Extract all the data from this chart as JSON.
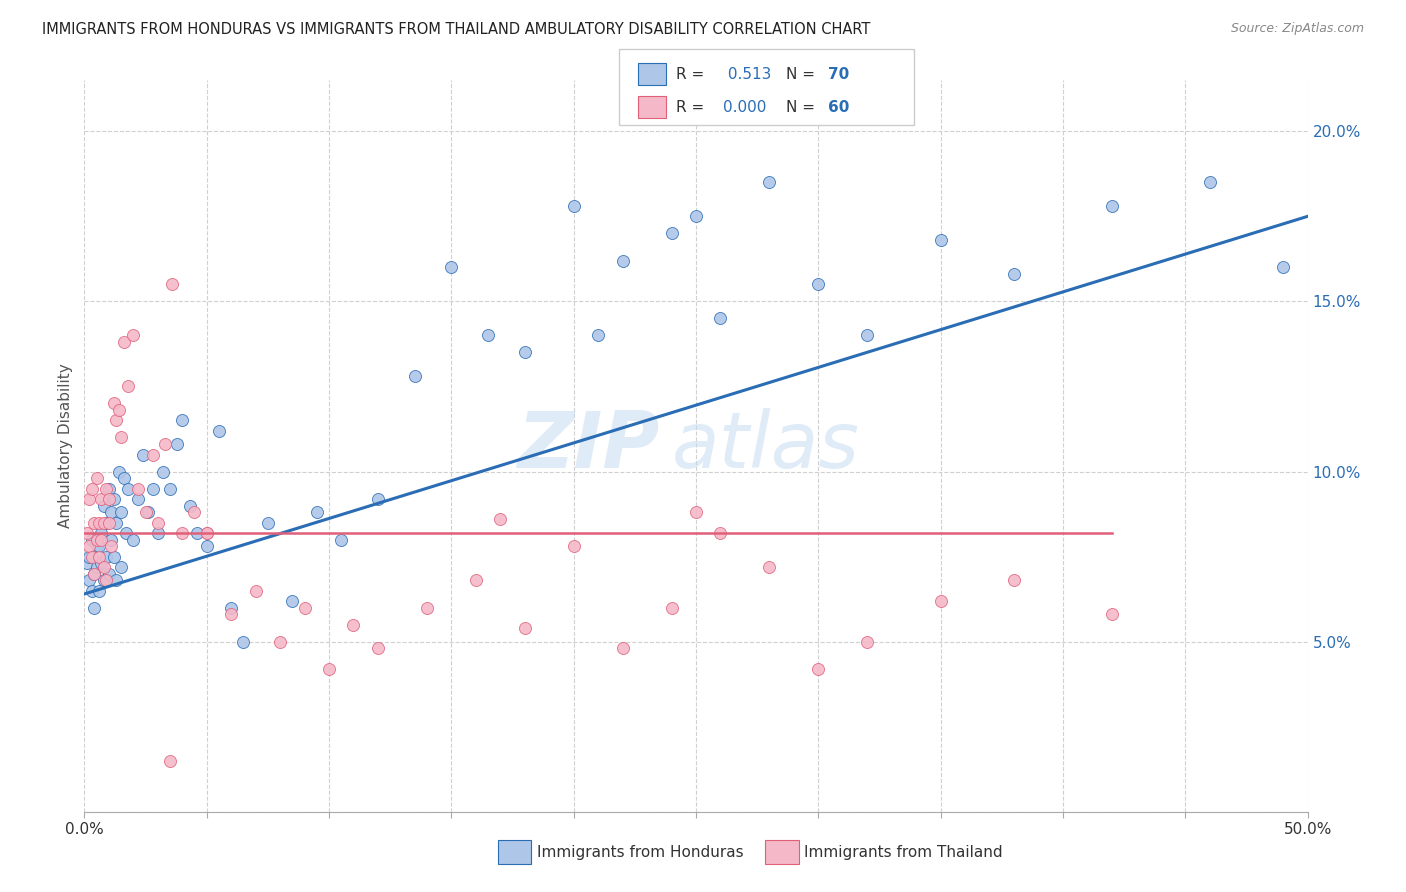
{
  "title": "IMMIGRANTS FROM HONDURAS VS IMMIGRANTS FROM THAILAND AMBULATORY DISABILITY CORRELATION CHART",
  "source": "Source: ZipAtlas.com",
  "ylabel": "Ambulatory Disability",
  "xlim": [
    0,
    0.5
  ],
  "ylim": [
    0,
    0.215
  ],
  "xticks": [
    0.0,
    0.05,
    0.1,
    0.15,
    0.2,
    0.25,
    0.3,
    0.35,
    0.4,
    0.45,
    0.5
  ],
  "xticklabels_show": {
    "0.0": "0.0%",
    "0.5": "50.0%"
  },
  "yticks_right": [
    0.05,
    0.1,
    0.15,
    0.2
  ],
  "ytick_labels_right": [
    "5.0%",
    "10.0%",
    "15.0%",
    "20.0%"
  ],
  "watermark_zip": "ZIP",
  "watermark_atlas": "atlas",
  "legend_r1_label": "R = ",
  "legend_r1_val": " 0.513",
  "legend_n1_label": "N = ",
  "legend_n1_val": "70",
  "legend_r2_label": "R = ",
  "legend_r2_val": "0.000",
  "legend_n2_label": "N = ",
  "legend_n2_val": "60",
  "color_honduras": "#aec6e8",
  "color_thailand": "#f4b8c8",
  "line_color_honduras": "#2a6db5",
  "line_color_thailand": "#e0607a",
  "background_color": "#ffffff",
  "grid_color": "#d0d0d0",
  "honduras_x": [
    0.001,
    0.002,
    0.002,
    0.003,
    0.003,
    0.004,
    0.004,
    0.005,
    0.005,
    0.006,
    0.006,
    0.007,
    0.007,
    0.008,
    0.008,
    0.009,
    0.009,
    0.01,
    0.01,
    0.011,
    0.011,
    0.012,
    0.012,
    0.013,
    0.013,
    0.014,
    0.015,
    0.015,
    0.016,
    0.017,
    0.018,
    0.02,
    0.022,
    0.024,
    0.026,
    0.028,
    0.03,
    0.032,
    0.035,
    0.038,
    0.04,
    0.043,
    0.046,
    0.05,
    0.055,
    0.06,
    0.065,
    0.075,
    0.085,
    0.095,
    0.105,
    0.12,
    0.135,
    0.15,
    0.165,
    0.18,
    0.2,
    0.22,
    0.25,
    0.28,
    0.3,
    0.32,
    0.35,
    0.38,
    0.42,
    0.46,
    0.49,
    0.21,
    0.24,
    0.26
  ],
  "honduras_y": [
    0.073,
    0.068,
    0.075,
    0.08,
    0.065,
    0.07,
    0.06,
    0.078,
    0.072,
    0.065,
    0.078,
    0.073,
    0.082,
    0.068,
    0.09,
    0.075,
    0.085,
    0.07,
    0.095,
    0.08,
    0.088,
    0.075,
    0.092,
    0.085,
    0.068,
    0.1,
    0.088,
    0.072,
    0.098,
    0.082,
    0.095,
    0.08,
    0.092,
    0.105,
    0.088,
    0.095,
    0.082,
    0.1,
    0.095,
    0.108,
    0.115,
    0.09,
    0.082,
    0.078,
    0.112,
    0.06,
    0.05,
    0.085,
    0.062,
    0.088,
    0.08,
    0.092,
    0.128,
    0.16,
    0.14,
    0.135,
    0.178,
    0.162,
    0.175,
    0.185,
    0.155,
    0.14,
    0.168,
    0.158,
    0.178,
    0.185,
    0.16,
    0.14,
    0.17,
    0.145
  ],
  "thailand_x": [
    0.001,
    0.002,
    0.002,
    0.003,
    0.003,
    0.004,
    0.004,
    0.005,
    0.005,
    0.006,
    0.006,
    0.007,
    0.007,
    0.008,
    0.008,
    0.009,
    0.009,
    0.01,
    0.01,
    0.011,
    0.012,
    0.013,
    0.014,
    0.015,
    0.016,
    0.018,
    0.02,
    0.022,
    0.025,
    0.028,
    0.03,
    0.033,
    0.036,
    0.04,
    0.045,
    0.05,
    0.06,
    0.07,
    0.08,
    0.09,
    0.1,
    0.11,
    0.12,
    0.14,
    0.16,
    0.18,
    0.2,
    0.22,
    0.24,
    0.26,
    0.28,
    0.3,
    0.32,
    0.35,
    0.38,
    0.42,
    0.25,
    0.17,
    0.05,
    0.035
  ],
  "thailand_y": [
    0.082,
    0.092,
    0.078,
    0.095,
    0.075,
    0.085,
    0.07,
    0.08,
    0.098,
    0.075,
    0.085,
    0.08,
    0.092,
    0.085,
    0.072,
    0.095,
    0.068,
    0.085,
    0.092,
    0.078,
    0.12,
    0.115,
    0.118,
    0.11,
    0.138,
    0.125,
    0.14,
    0.095,
    0.088,
    0.105,
    0.085,
    0.108,
    0.155,
    0.082,
    0.088,
    0.082,
    0.058,
    0.065,
    0.05,
    0.06,
    0.042,
    0.055,
    0.048,
    0.06,
    0.068,
    0.054,
    0.078,
    0.048,
    0.06,
    0.082,
    0.072,
    0.042,
    0.05,
    0.062,
    0.068,
    0.058,
    0.088,
    0.086,
    0.082,
    0.015
  ],
  "trend_honduras_x0": 0.0,
  "trend_honduras_x1": 0.5,
  "trend_honduras_y0": 0.064,
  "trend_honduras_y1": 0.175,
  "trend_thailand_y": 0.082
}
